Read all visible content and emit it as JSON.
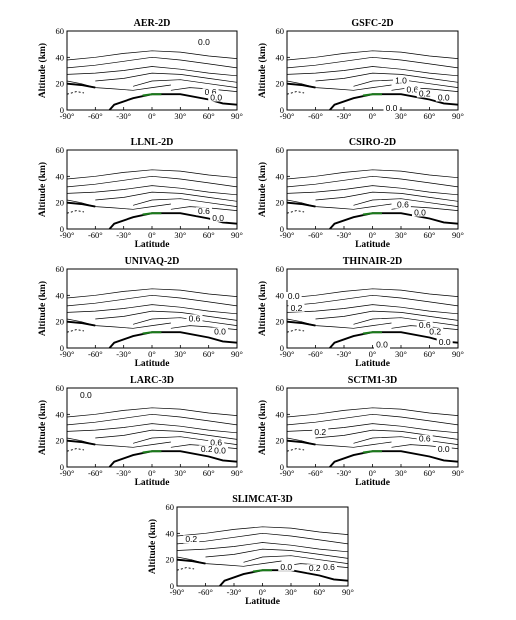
{
  "chart_data": [
    {
      "type": "contour",
      "title": "AER-2D",
      "xlabel": "",
      "ylabel": "Altitude (km)",
      "xlim": [
        -90,
        90
      ],
      "ylim": [
        0,
        60
      ],
      "contour_labels": [
        {
          "text": "0.0",
          "x": 55,
          "y": 50
        },
        {
          "text": "0.6",
          "x": 62,
          "y": 12
        },
        {
          "text": "0.0",
          "x": 68,
          "y": 8
        }
      ]
    },
    {
      "type": "contour",
      "title": "GSFC-2D",
      "xlabel": "",
      "ylabel": "Altitude (km)",
      "xlim": [
        -90,
        90
      ],
      "ylim": [
        0,
        60
      ],
      "contour_labels": [
        {
          "text": "1.0",
          "x": 30,
          "y": 21
        },
        {
          "text": "0.6",
          "x": 42,
          "y": 14
        },
        {
          "text": "0.2",
          "x": 55,
          "y": 11
        },
        {
          "text": "0.0",
          "x": 75,
          "y": 8
        },
        {
          "text": "0.0",
          "x": 20,
          "y": 0
        }
      ]
    },
    {
      "type": "contour",
      "title": "LLNL-2D",
      "xlabel": "Latitude",
      "ylabel": "Altitude (km)",
      "xlim": [
        -90,
        90
      ],
      "ylim": [
        0,
        60
      ],
      "contour_labels": [
        {
          "text": "0.6",
          "x": 55,
          "y": 12
        },
        {
          "text": "0.0",
          "x": 70,
          "y": 7
        }
      ]
    },
    {
      "type": "contour",
      "title": "CSIRO-2D",
      "xlabel": "Latitude",
      "ylabel": "Altitude (km)",
      "xlim": [
        -90,
        90
      ],
      "ylim": [
        0,
        60
      ],
      "contour_labels": [
        {
          "text": "0.6",
          "x": 32,
          "y": 17
        },
        {
          "text": "0.0",
          "x": 50,
          "y": 11
        }
      ]
    },
    {
      "type": "contour",
      "title": "UNIVAQ-2D",
      "xlabel": "Latitude",
      "ylabel": "Altitude (km)",
      "xlim": [
        -90,
        90
      ],
      "ylim": [
        0,
        60
      ],
      "contour_labels": [
        {
          "text": "0.6",
          "x": 45,
          "y": 21
        },
        {
          "text": "0.0",
          "x": 72,
          "y": 11
        }
      ]
    },
    {
      "type": "contour",
      "title": "THINAIR-2D",
      "xlabel": "Latitude",
      "ylabel": "Altitude (km)",
      "xlim": [
        -90,
        90
      ],
      "ylim": [
        0,
        60
      ],
      "contour_labels": [
        {
          "text": "0.0",
          "x": -83,
          "y": 38
        },
        {
          "text": "0.2",
          "x": -80,
          "y": 29
        },
        {
          "text": "0.6",
          "x": 55,
          "y": 16
        },
        {
          "text": "0.2",
          "x": 66,
          "y": 11
        },
        {
          "text": "0.0",
          "x": 76,
          "y": 3
        },
        {
          "text": "0.0",
          "x": 10,
          "y": 1
        }
      ]
    },
    {
      "type": "contour",
      "title": "LARC-3D",
      "xlabel": "Latitude",
      "ylabel": "Altitude (km)",
      "xlim": [
        -90,
        90
      ],
      "ylim": [
        0,
        60
      ],
      "contour_labels": [
        {
          "text": "0.0",
          "x": -70,
          "y": 53
        },
        {
          "text": "0.6",
          "x": 68,
          "y": 17
        },
        {
          "text": "0.2",
          "x": 58,
          "y": 12
        },
        {
          "text": "0.0",
          "x": 72,
          "y": 11
        }
      ]
    },
    {
      "type": "contour",
      "title": "SCTM1-3D",
      "xlabel": "Latitude",
      "ylabel": "Altitude (km)",
      "xlim": [
        -90,
        90
      ],
      "ylim": [
        0,
        60
      ],
      "contour_labels": [
        {
          "text": "0.2",
          "x": -55,
          "y": 25
        },
        {
          "text": "0.6",
          "x": 55,
          "y": 20
        },
        {
          "text": "0.0",
          "x": 75,
          "y": 12
        }
      ]
    },
    {
      "type": "contour",
      "title": "SLIMCAT-3D",
      "xlabel": "Latitude",
      "ylabel": "Altitude (km)",
      "xlim": [
        -90,
        90
      ],
      "ylim": [
        0,
        60
      ],
      "contour_labels": [
        {
          "text": "0.2",
          "x": -75,
          "y": 34
        },
        {
          "text": "0.0",
          "x": 25,
          "y": 13
        },
        {
          "text": "0.2",
          "x": 55,
          "y": 12
        },
        {
          "text": "0.6",
          "x": 70,
          "y": 13
        }
      ]
    }
  ],
  "axes": {
    "x_ticks": [
      "-90°",
      "-60°",
      "-30°",
      "0°",
      "30°",
      "60°",
      "90°"
    ],
    "y_ticks": [
      "0",
      "20",
      "40",
      "60"
    ]
  }
}
